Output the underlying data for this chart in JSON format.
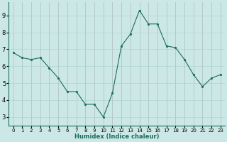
{
  "x": [
    0,
    1,
    2,
    3,
    4,
    5,
    6,
    7,
    8,
    9,
    10,
    11,
    12,
    13,
    14,
    15,
    16,
    17,
    18,
    19,
    20,
    21,
    22,
    23
  ],
  "y": [
    6.8,
    6.5,
    6.4,
    6.5,
    5.9,
    5.3,
    4.5,
    4.5,
    3.75,
    3.75,
    3.0,
    4.4,
    7.2,
    7.9,
    9.3,
    8.5,
    8.5,
    7.2,
    7.1,
    6.4,
    5.5,
    4.8,
    5.3,
    5.5
  ],
  "xlabel": "Humidex (Indice chaleur)",
  "ylabel": "",
  "title": "",
  "xlim": [
    -0.5,
    23.5
  ],
  "ylim": [
    2.5,
    9.8
  ],
  "yticks": [
    3,
    4,
    5,
    6,
    7,
    8,
    9
  ],
  "xticks": [
    0,
    1,
    2,
    3,
    4,
    5,
    6,
    7,
    8,
    9,
    10,
    11,
    12,
    13,
    14,
    15,
    16,
    17,
    18,
    19,
    20,
    21,
    22,
    23
  ],
  "line_color": "#1a6b5e",
  "marker": "o",
  "marker_size": 2,
  "bg_color": "#cce8e6",
  "grid_color": "#aed4d0",
  "grid_major_color": "#c8a0a0"
}
